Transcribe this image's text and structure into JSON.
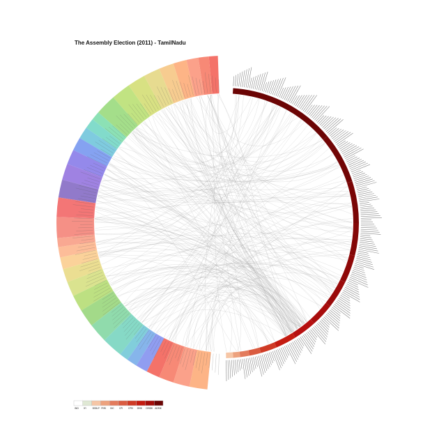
{
  "title": "The Assembly Election (2011) - TamilNadu",
  "legend": {
    "labels": [
      "IND",
      "IYI",
      "BSBLP",
      "PMK",
      "INC",
      "CPI",
      "CPM",
      "DMK",
      "DMDK",
      "ADMK"
    ],
    "colors": [
      "#ffffff",
      "#dfe8d4",
      "#f6c6a6",
      "#eda27e",
      "#e37b5c",
      "#da5c41",
      "#cf3a25",
      "#c41b10",
      "#a30d0a",
      "#6b0404"
    ]
  },
  "diagram": {
    "left_segments": 34,
    "right_segments": 14,
    "link_count": 234,
    "link_color": "#9a9a9a"
  }
}
